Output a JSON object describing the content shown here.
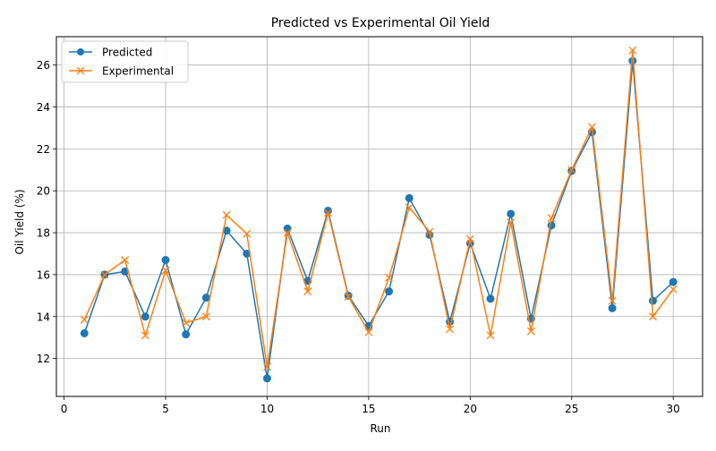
{
  "chart_data": {
    "type": "line",
    "title": "Predicted vs Experimental Oil Yield",
    "xlabel": "Run",
    "ylabel": "Oil Yield (%)",
    "xlim": [
      0,
      30
    ],
    "ylim": [
      11,
      26.7
    ],
    "x_ticks": [
      0,
      5,
      10,
      15,
      20,
      25,
      30
    ],
    "y_ticks": [
      12,
      14,
      16,
      18,
      20,
      22,
      24,
      26
    ],
    "grid": true,
    "legend_position": "top-left",
    "x": [
      1,
      2,
      3,
      4,
      5,
      6,
      7,
      8,
      9,
      10,
      11,
      12,
      13,
      14,
      15,
      16,
      17,
      18,
      19,
      20,
      21,
      22,
      23,
      24,
      25,
      26,
      27,
      28,
      29,
      30
    ],
    "series": [
      {
        "name": "Predicted",
        "marker": "circle",
        "color": "#1f77b4",
        "values": [
          13.2,
          16.0,
          16.15,
          14.0,
          16.7,
          13.15,
          14.9,
          18.1,
          17.0,
          11.05,
          18.2,
          15.7,
          19.05,
          15.0,
          13.55,
          15.2,
          19.65,
          17.9,
          13.75,
          17.5,
          14.85,
          18.9,
          13.9,
          18.35,
          20.95,
          22.8,
          14.4,
          26.2,
          14.75,
          15.65
        ]
      },
      {
        "name": "Experimental",
        "marker": "x",
        "color": "#ff7f0e",
        "values": [
          13.85,
          16.0,
          16.7,
          13.1,
          16.2,
          13.7,
          14.0,
          18.85,
          17.95,
          11.6,
          18.0,
          15.2,
          18.95,
          14.95,
          13.25,
          15.85,
          19.2,
          18.05,
          13.4,
          17.7,
          13.1,
          18.5,
          13.3,
          18.7,
          21.0,
          23.05,
          14.75,
          26.7,
          14.0,
          15.3
        ]
      }
    ]
  }
}
